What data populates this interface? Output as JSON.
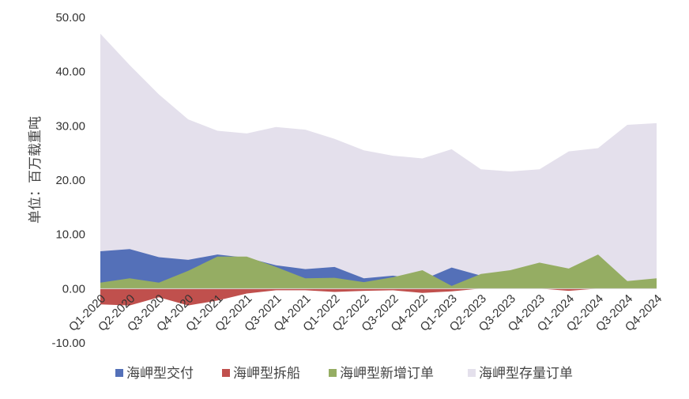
{
  "chart_data": {
    "type": "area",
    "ylabel": "单位：百万载重吨",
    "ylim": [
      -10,
      50
    ],
    "yticks": [
      -10,
      0,
      10,
      20,
      30,
      40,
      50
    ],
    "ytick_labels": [
      "-10.00",
      "0.00",
      "10.00",
      "20.00",
      "30.00",
      "40.00",
      "50.00"
    ],
    "categories": [
      "Q1-2020",
      "Q2-2020",
      "Q3-2020",
      "Q4-2020",
      "Q1-2021",
      "Q2-2021",
      "Q3-2021",
      "Q4-2021",
      "Q1-2022",
      "Q2-2022",
      "Q3-2022",
      "Q4-2022",
      "Q1-2023",
      "Q2-2023",
      "Q3-2023",
      "Q4-2023",
      "Q1-2024",
      "Q2-2024",
      "Q3-2024",
      "Q4-2024"
    ],
    "legend_position": "bottom",
    "series": [
      {
        "name": "海岬型存量订单",
        "color": "#e4e0ec",
        "values": [
          47.0,
          41.2,
          35.8,
          31.2,
          29.1,
          28.6,
          29.8,
          29.3,
          27.6,
          25.5,
          24.5,
          24.0,
          25.7,
          22.0,
          21.6,
          22.0,
          25.3,
          25.9,
          30.2,
          30.5
        ]
      },
      {
        "name": "海岬型交付",
        "color": "#5470b8",
        "values": [
          6.9,
          7.3,
          5.8,
          5.3,
          6.3,
          5.7,
          4.3,
          3.6,
          4.0,
          1.9,
          2.4,
          1.6,
          3.9,
          2.4,
          1.6,
          1.9,
          2.3,
          2.0,
          1.2,
          0.8
        ]
      },
      {
        "name": "海岬型新增订单",
        "color": "#95ad63",
        "values": [
          1.1,
          1.9,
          1.1,
          3.3,
          5.9,
          5.9,
          4.0,
          1.9,
          2.0,
          1.2,
          2.1,
          3.4,
          0.5,
          2.7,
          3.4,
          4.8,
          3.7,
          6.3,
          1.4,
          1.9
        ]
      },
      {
        "name": "海岬型拆船",
        "color": "#c0504d",
        "values": [
          -2.9,
          -3.1,
          -1.6,
          -3.1,
          -2.2,
          -0.9,
          -0.3,
          -0.3,
          -0.6,
          -0.4,
          -0.3,
          -0.8,
          -0.5,
          0.0,
          0.0,
          0.0,
          -0.4,
          0.0,
          0.0,
          0.0
        ]
      }
    ],
    "legend_order": [
      "海岬型交付",
      "海岬型拆船",
      "海岬型新增订单",
      "海岬型存量订单"
    ]
  }
}
